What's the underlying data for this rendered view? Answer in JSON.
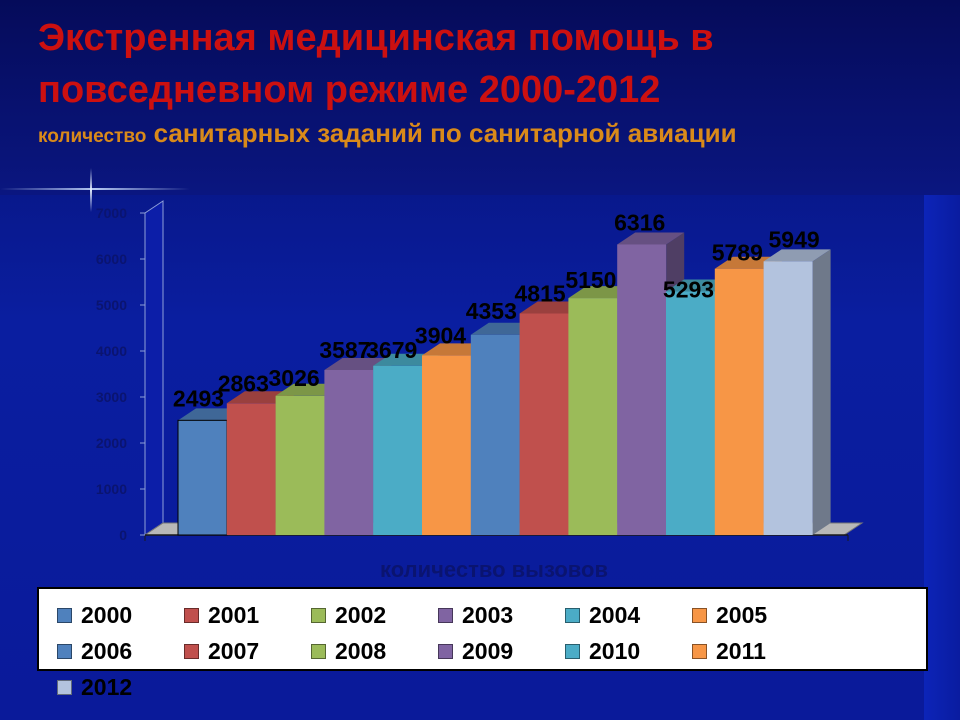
{
  "slide": {
    "title": "Экстренная медицинская помощь в повседневном режиме 2000-2012",
    "subtitle_small": "количество",
    "subtitle_main": "санитарных заданий по санитарной авиации"
  },
  "chart_data": {
    "type": "bar",
    "style": "3d",
    "categories": [
      "количество вызовов"
    ],
    "xlabel": "количество вызовов",
    "ylabel": "",
    "ylim": [
      0,
      7000
    ],
    "yticks": [
      0,
      1000,
      2000,
      3000,
      4000,
      5000,
      6000,
      7000
    ],
    "grid": false,
    "legend": "bottom",
    "series": [
      {
        "name": "2000",
        "values": [
          2493
        ],
        "color": "#4f81bd"
      },
      {
        "name": "2001",
        "values": [
          2863
        ],
        "color": "#c0504d"
      },
      {
        "name": "2002",
        "values": [
          3026
        ],
        "color": "#9bbb59"
      },
      {
        "name": "2003",
        "values": [
          3587
        ],
        "color": "#8064a2"
      },
      {
        "name": "2004",
        "values": [
          3679
        ],
        "color": "#4bacc6"
      },
      {
        "name": "2005",
        "values": [
          3904
        ],
        "color": "#f79646"
      },
      {
        "name": "2006",
        "values": [
          4353
        ],
        "color": "#4f81bd"
      },
      {
        "name": "2007",
        "values": [
          4815
        ],
        "color": "#c0504d"
      },
      {
        "name": "2008",
        "values": [
          5150
        ],
        "color": "#9bbb59"
      },
      {
        "name": "2009",
        "values": [
          6316
        ],
        "color": "#8064a2"
      },
      {
        "name": "2010",
        "values": [
          5293
        ],
        "color": "#4bacc6"
      },
      {
        "name": "2011",
        "values": [
          5789
        ],
        "color": "#f79646"
      },
      {
        "name": "2012",
        "values": [
          5949
        ],
        "color": "#b3c3de"
      }
    ]
  }
}
